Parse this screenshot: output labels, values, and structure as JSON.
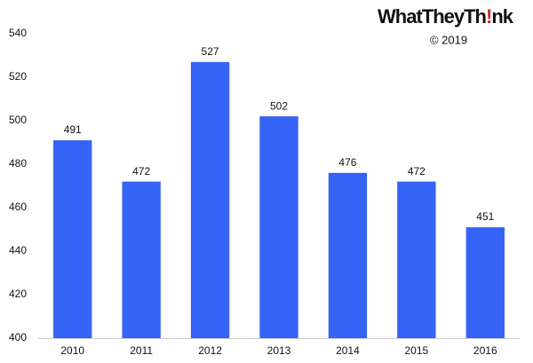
{
  "chart_data": {
    "type": "bar",
    "brand": [
      "WhatTheyTh",
      "!",
      "nk"
    ],
    "copyright": "© 2019",
    "categories": [
      "2010",
      "2011",
      "2012",
      "2013",
      "2014",
      "2015",
      "2016"
    ],
    "values": [
      491,
      472,
      527,
      502,
      476,
      472,
      451
    ],
    "color": "#3563f6",
    "ylim": [
      400,
      540
    ],
    "yticks": [
      400,
      420,
      440,
      460,
      480,
      500,
      520,
      540
    ],
    "grid": false
  }
}
